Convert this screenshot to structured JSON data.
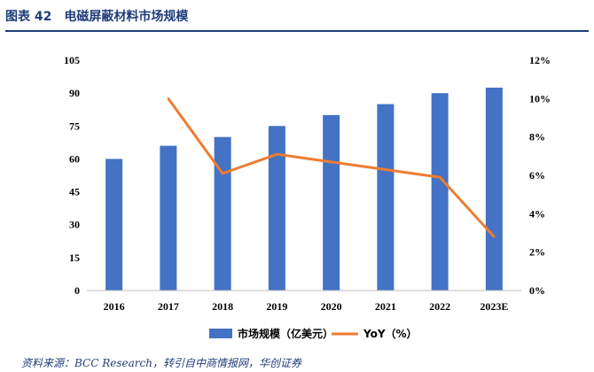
{
  "header": {
    "figure_label": "图表 42",
    "title": "电磁屏蔽材料市场规模"
  },
  "source": "资料来源：BCC Research，转引自中商情报网，华创证券",
  "colors": {
    "bar": "#4472c4",
    "line": "#ed7d31",
    "title": "#1f3d7a"
  },
  "chart_data": {
    "type": "bar",
    "categories": [
      "2016",
      "2017",
      "2018",
      "2019",
      "2020",
      "2021",
      "2022",
      "2023E"
    ],
    "series": [
      {
        "name": "市场规模（亿美元）",
        "type": "bar",
        "axis": "left",
        "values": [
          60,
          66,
          70,
          75,
          80,
          85,
          90,
          92.5
        ]
      },
      {
        "name": "YoY（%）",
        "type": "line",
        "axis": "right",
        "values": [
          null,
          10.0,
          6.1,
          7.1,
          6.7,
          6.3,
          5.9,
          2.8
        ]
      }
    ],
    "y_left": {
      "ylim": [
        0,
        105
      ],
      "ticks": [
        0,
        15,
        30,
        45,
        60,
        75,
        90,
        105
      ]
    },
    "y_right": {
      "ylim": [
        0,
        12
      ],
      "ticks": [
        "0%",
        "2%",
        "4%",
        "6%",
        "8%",
        "10%",
        "12%"
      ]
    },
    "grid": false,
    "legend": "bottom"
  }
}
